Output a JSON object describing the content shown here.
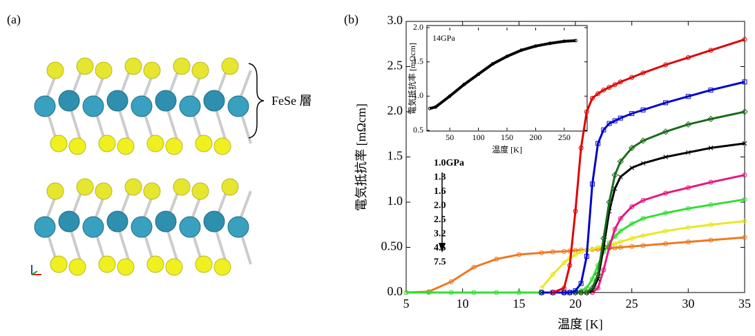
{
  "panel_a": {
    "label": "(a)",
    "annotation": "FeSe 層"
  },
  "panel_b_label": "(b)",
  "chart_data": [
    {
      "type": "line",
      "x_label": "温度 [K]",
      "y_label": "電気抵抗率 [mΩcm]",
      "x": [
        5,
        7,
        9,
        11,
        13,
        15,
        17,
        18,
        19,
        19.5,
        20,
        20.5,
        21,
        21.5,
        22,
        22.5,
        23,
        23.5,
        24,
        25,
        26,
        28,
        30,
        32,
        35
      ],
      "xlim": [
        5,
        35
      ],
      "xticks": [
        5,
        10,
        15,
        20,
        25,
        30,
        35
      ],
      "ylim": [
        0,
        3
      ],
      "yticks": [
        {
          "value": 0,
          "label": "0.0"
        },
        {
          "value": 0.5,
          "label": "0.50"
        },
        {
          "value": 1,
          "label": "1.0"
        },
        {
          "value": 1.5,
          "label": "1.5"
        },
        {
          "value": 2,
          "label": "2.0"
        },
        {
          "value": 2.5,
          "label": "2.5"
        },
        {
          "value": 3,
          "label": "3.0"
        }
      ],
      "series": [
        {
          "name": "1.0GPa",
          "color": "#e00000",
          "marker": "circle",
          "values": [
            null,
            null,
            null,
            null,
            null,
            null,
            null,
            0,
            0.05,
            0.3,
            0.9,
            1.6,
            2.0,
            2.15,
            2.2,
            2.24,
            2.27,
            2.3,
            2.33,
            2.38,
            2.43,
            2.52,
            2.6,
            2.68,
            2.8
          ]
        },
        {
          "name": "1.3",
          "color": "#0000cc",
          "marker": "square",
          "values": [
            null,
            null,
            null,
            null,
            null,
            null,
            0,
            0,
            0,
            0,
            0.02,
            0.1,
            0.4,
            1.2,
            1.65,
            1.8,
            1.87,
            1.9,
            1.93,
            1.98,
            2.02,
            2.1,
            2.17,
            2.24,
            2.33
          ]
        },
        {
          "name": "1.6",
          "color": "#1a6b1a",
          "marker": "diamond",
          "values": [
            null,
            null,
            null,
            null,
            null,
            null,
            0,
            0,
            0,
            0,
            0,
            0,
            0,
            0.05,
            0.2,
            0.6,
            1.0,
            1.3,
            1.45,
            1.6,
            1.68,
            1.78,
            1.86,
            1.92,
            2.0
          ]
        },
        {
          "name": "2.0",
          "color": "#000000",
          "marker": "cross",
          "values": [
            null,
            null,
            null,
            null,
            null,
            null,
            0,
            0,
            0,
            0,
            0,
            0,
            0,
            0.02,
            0.15,
            0.5,
            0.9,
            1.15,
            1.28,
            1.38,
            1.43,
            1.5,
            1.55,
            1.6,
            1.65
          ]
        },
        {
          "name": "2.5",
          "color": "#e8177e",
          "marker": "circle",
          "values": [
            null,
            null,
            null,
            null,
            null,
            null,
            0,
            0,
            0,
            0,
            0,
            0,
            0,
            0,
            0.05,
            0.25,
            0.5,
            0.7,
            0.82,
            0.95,
            1.02,
            1.1,
            1.16,
            1.22,
            1.3
          ]
        },
        {
          "name": "3.2",
          "color": "#33dd33",
          "marker": "circle",
          "values": [
            0,
            0,
            0,
            0,
            0,
            0,
            0,
            0,
            0,
            0,
            0,
            0.02,
            0.05,
            0.15,
            0.3,
            0.45,
            0.55,
            0.62,
            0.68,
            0.76,
            0.82,
            0.88,
            0.93,
            0.97,
            1.03
          ]
        },
        {
          "name": "4.5",
          "color": "#e8e820",
          "marker": "circle",
          "values": [
            null,
            null,
            null,
            null,
            null,
            null,
            0.05,
            0.2,
            0.33,
            0.38,
            0.42,
            0.45,
            0.47,
            0.48,
            0.5,
            0.51,
            0.52,
            0.54,
            0.56,
            0.6,
            0.63,
            0.68,
            0.72,
            0.75,
            0.79
          ]
        },
        {
          "name": "7.5",
          "color": "#f07820",
          "marker": "circle",
          "values": [
            0,
            0.01,
            0.12,
            0.28,
            0.37,
            0.42,
            0.44,
            0.45,
            0.455,
            0.46,
            0.465,
            0.47,
            0.47,
            0.475,
            0.48,
            0.485,
            0.49,
            0.495,
            0.5,
            0.51,
            0.52,
            0.54,
            0.56,
            0.58,
            0.61
          ]
        }
      ]
    },
    {
      "type": "line",
      "annotation": "14GPa",
      "x_label": "温度 [K]",
      "y_label": "電気抵抗率 [mΩcm]",
      "x": [
        15,
        25,
        50,
        75,
        100,
        125,
        150,
        175,
        200,
        225,
        250,
        270
      ],
      "xlim": [
        10,
        290
      ],
      "xticks": [
        50,
        100,
        150,
        200,
        250
      ],
      "ylim": [
        0.5,
        2
      ],
      "yticks": [
        0.5,
        {
          "value": 1,
          "label": "1.0"
        },
        1.5,
        {
          "value": 2,
          "label": "2.0"
        }
      ],
      "series": [
        {
          "color": "#000000",
          "marker": "circle",
          "values": [
            0.82,
            0.84,
            1.0,
            1.17,
            1.32,
            1.47,
            1.58,
            1.67,
            1.73,
            1.77,
            1.8,
            1.81
          ]
        }
      ]
    }
  ]
}
